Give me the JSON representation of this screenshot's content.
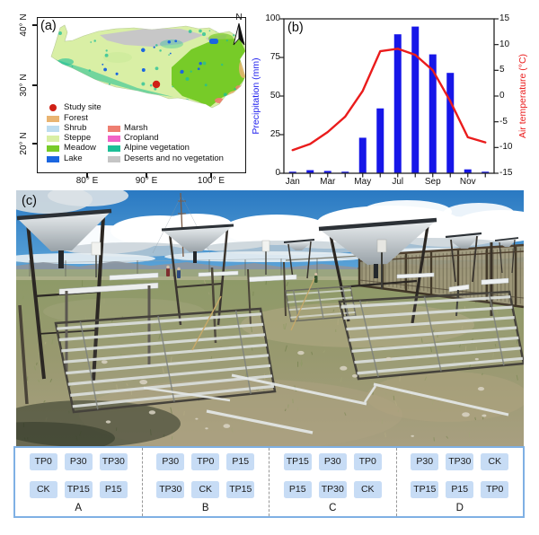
{
  "panel_a": {
    "label": "(a)",
    "lat_ticks": [
      "40° N",
      "30° N",
      "20° N"
    ],
    "lon_ticks": [
      "80° E",
      "90° E",
      "100° E"
    ],
    "north_label": "N",
    "legend": [
      {
        "label": "Study site",
        "color": "#cf2015",
        "shape": "circle"
      },
      {
        "label": "Forest",
        "color": "#e9b471",
        "shape": "rect"
      },
      {
        "label": "Shrub",
        "color": "#bcdcf0",
        "shape": "rect"
      },
      {
        "label": "Steppe",
        "color": "#d9efa5",
        "shape": "rect"
      },
      {
        "label": "Meadow",
        "color": "#77cb28",
        "shape": "rect"
      },
      {
        "label": "Lake",
        "color": "#1b66e0",
        "shape": "rect"
      },
      {
        "label": "Marsh",
        "color": "#ee7e71",
        "shape": "rect"
      },
      {
        "label": "Cropland",
        "color": "#f163c6",
        "shape": "rect"
      },
      {
        "label": "Alpine vegetation",
        "color": "#1dbf97",
        "shape": "rect"
      },
      {
        "label": "Deserts and no vegetation",
        "color": "#c5c5c5",
        "shape": "rect"
      }
    ]
  },
  "panel_b": {
    "label": "(b)"
  },
  "chart_data": {
    "type": "bar+line",
    "categories": [
      "Jan",
      "Feb",
      "Mar",
      "Apr",
      "May",
      "Jun",
      "Jul",
      "Aug",
      "Sep",
      "Oct",
      "Nov",
      "Dec"
    ],
    "x_tick_labels": [
      "Jan",
      "Mar",
      "May",
      "Jul",
      "Sep",
      "Nov"
    ],
    "series": [
      {
        "name": "Precipitation",
        "type": "bar",
        "axis": "left",
        "color": "#1616e8",
        "values": [
          1,
          2,
          1.5,
          1,
          23,
          42,
          90,
          95,
          77,
          65,
          2.5,
          1
        ]
      },
      {
        "name": "Air temperature",
        "type": "line",
        "axis": "right",
        "color": "#ea1c1c",
        "values": [
          -10.5,
          -9.3,
          -7,
          -4,
          1,
          8.7,
          9.2,
          8,
          5,
          -1,
          -8,
          -9
        ]
      }
    ],
    "left_axis": {
      "label": "Precipitation (mm)",
      "min": 0,
      "max": 100,
      "ticks": [
        0,
        25,
        50,
        75,
        100
      ],
      "color": "#2222ee"
    },
    "right_axis": {
      "label": "Air temperature (°C)",
      "min": -15,
      "max": 15,
      "ticks": [
        -15,
        -10,
        -5,
        0,
        5,
        10,
        15
      ],
      "color": "#ea1c1c"
    },
    "grid": false,
    "legend_position": "none"
  },
  "panel_c": {
    "label": "(c)"
  },
  "design": {
    "blocks": [
      {
        "name": "A",
        "rows": [
          [
            "TP0",
            "P30",
            "TP30"
          ],
          [
            "CK",
            "TP15",
            "P15"
          ]
        ]
      },
      {
        "name": "B",
        "rows": [
          [
            "P30",
            "TP0",
            "P15"
          ],
          [
            "TP30",
            "CK",
            "TP15"
          ]
        ]
      },
      {
        "name": "C",
        "rows": [
          [
            "TP15",
            "P30",
            "TP0"
          ],
          [
            "P15",
            "TP30",
            "CK"
          ]
        ]
      },
      {
        "name": "D",
        "rows": [
          [
            "P30",
            "TP30",
            "CK"
          ],
          [
            "TP15",
            "P15",
            "TP0"
          ]
        ]
      }
    ]
  }
}
